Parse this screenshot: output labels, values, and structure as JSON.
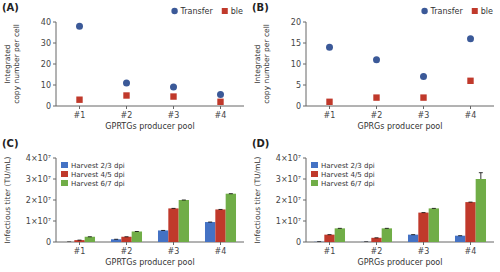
{
  "chart_data": [
    {
      "type": "scatter",
      "title": "(A)",
      "x_label": "GPRTGs producer pool",
      "y_label": "Integrated\ncopy number per cell",
      "categories": [
        "#1",
        "#2",
        "#3",
        "#4"
      ],
      "series": [
        {
          "name": "Transfer",
          "color": "#3b5998",
          "marker": "circle",
          "values": [
            38,
            11,
            9,
            5.5
          ]
        },
        {
          "name": "ble",
          "color": "#c0392b",
          "marker": "square",
          "values": [
            3,
            5,
            4.5,
            2
          ]
        }
      ],
      "ylim": [
        0,
        40
      ],
      "yticks": [
        0,
        10,
        20,
        30,
        40
      ],
      "legend": "upper right"
    },
    {
      "type": "scatter",
      "title": "(B)",
      "x_label": "GPRGs producer pool",
      "y_label": "Integrated\ncopy number per cell",
      "categories": [
        "#1",
        "#2",
        "#3",
        "#4"
      ],
      "series": [
        {
          "name": "Transfer",
          "color": "#3b5998",
          "marker": "circle",
          "values": [
            14,
            11,
            7,
            16
          ]
        },
        {
          "name": "ble",
          "color": "#c0392b",
          "marker": "square",
          "values": [
            1,
            2,
            2,
            6
          ]
        }
      ],
      "ylim": [
        0,
        20
      ],
      "yticks": [
        0,
        5,
        10,
        15,
        20
      ],
      "legend": "upper right"
    },
    {
      "type": "bar",
      "title": "(C)",
      "x_label": "GPRTGs producer pool",
      "y_label": "Infectious titer (TU/mL)",
      "categories": [
        "#1",
        "#2",
        "#3",
        "#4"
      ],
      "series": [
        {
          "name": "Harvest 2/3 dpi",
          "color": "#4472c4",
          "values": [
            0,
            1300000,
            5500000,
            9500000
          ],
          "errors": [
            0,
            0,
            0,
            0
          ]
        },
        {
          "name": "Harvest 4/5 dpi",
          "color": "#c0392b",
          "values": [
            900000,
            2500000,
            16000000,
            15500000
          ],
          "errors": [
            0,
            0,
            0,
            0
          ]
        },
        {
          "name": "Harvest 6/7 dpi",
          "color": "#70ad47",
          "values": [
            2500000,
            5000000,
            20000000,
            23000000
          ],
          "errors": [
            0,
            0,
            0,
            0
          ]
        }
      ],
      "ylim": [
        0,
        40000000
      ],
      "yticks": [
        0,
        {
          "value": 10000000,
          "label": "1×10⁷"
        },
        {
          "value": 20000000,
          "label": "2×10⁷"
        },
        {
          "value": 30000000,
          "label": "3×10⁷"
        },
        {
          "value": 40000000,
          "label": "4×10⁷"
        }
      ],
      "legend": "upper left"
    },
    {
      "type": "bar",
      "title": "(D)",
      "x_label": "GPRGs producer pool",
      "y_label": "Infectious titer (TU/mL)",
      "categories": [
        "#1",
        "#2",
        "#3",
        "#4"
      ],
      "series": [
        {
          "name": "Harvest 2/3 dpi",
          "color": "#4472c4",
          "values": [
            100000,
            50000,
            3500000,
            3000000
          ],
          "errors": [
            0,
            0,
            0,
            0
          ]
        },
        {
          "name": "Harvest 4/5 dpi",
          "color": "#c0392b",
          "values": [
            3500000,
            2000000,
            14000000,
            19000000
          ],
          "errors": [
            0,
            0,
            0,
            0
          ]
        },
        {
          "name": "Harvest 6/7 dpi",
          "color": "#70ad47",
          "values": [
            6500000,
            6500000,
            16000000,
            30000000
          ],
          "errors": [
            0,
            0,
            0,
            3000000
          ]
        }
      ],
      "ylim": [
        0,
        40000000
      ],
      "yticks": [
        0,
        {
          "value": 10000000,
          "label": "1×10⁷"
        },
        {
          "value": 20000000,
          "label": "2×10⁷"
        },
        {
          "value": 30000000,
          "label": "3×10⁷"
        },
        {
          "value": 40000000,
          "label": "4×10⁷"
        }
      ],
      "legend": "upper left"
    }
  ]
}
